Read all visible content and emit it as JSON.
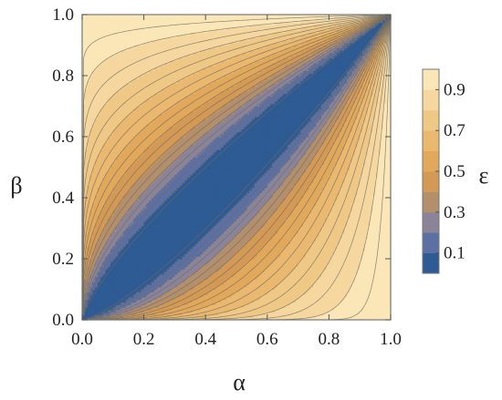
{
  "chart_data": {
    "type": "contour",
    "xlabel": "α",
    "ylabel": "β",
    "xlim": [
      0,
      1
    ],
    "ylim": [
      0,
      1
    ],
    "x_ticks": [
      "0.0",
      "0.2",
      "0.4",
      "0.6",
      "0.8",
      "1.0"
    ],
    "y_ticks": [
      "0.0",
      "0.2",
      "0.4",
      "0.6",
      "0.8",
      "1.0"
    ],
    "grid": false,
    "colorbar": {
      "label": "ε",
      "placement": "right",
      "range": [
        0,
        1
      ],
      "bands": [
        {
          "from": 0.0,
          "to": 0.1,
          "color": "#2e5b93"
        },
        {
          "from": 0.1,
          "to": 0.2,
          "color": "#5d70a3"
        },
        {
          "from": 0.2,
          "to": 0.3,
          "color": "#8b8498"
        },
        {
          "from": 0.3,
          "to": 0.4,
          "color": "#b38f6c"
        },
        {
          "from": 0.4,
          "to": 0.5,
          "color": "#d49a55"
        },
        {
          "from": 0.5,
          "to": 0.6,
          "color": "#e2a85b"
        },
        {
          "from": 0.6,
          "to": 0.7,
          "color": "#eab86e"
        },
        {
          "from": 0.7,
          "to": 0.8,
          "color": "#f0c886"
        },
        {
          "from": 0.8,
          "to": 0.9,
          "color": "#f5d79f"
        },
        {
          "from": 0.9,
          "to": 1.0,
          "color": "#fae6b6"
        }
      ],
      "tick_labels": [
        "0.1",
        "0.3",
        "0.5",
        "0.7",
        "0.9"
      ],
      "tick_values": [
        0.1,
        0.3,
        0.5,
        0.7,
        0.9
      ]
    },
    "contour_levels": [
      0.05,
      0.1,
      0.15,
      0.2,
      0.25,
      0.3,
      0.35,
      0.4,
      0.45,
      0.5,
      0.55,
      0.6,
      0.65,
      0.7,
      0.75,
      0.8,
      0.85,
      0.9,
      0.95
    ],
    "line_color": "#6d6a64",
    "frame_color": "#777777"
  }
}
